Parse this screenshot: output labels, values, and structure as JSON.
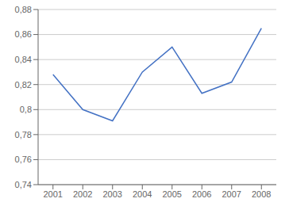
{
  "chart_data": {
    "type": "line",
    "x": [
      2001,
      2002,
      2003,
      2004,
      2005,
      2006,
      2007,
      2008
    ],
    "values": [
      0.828,
      0.8,
      0.791,
      0.83,
      0.85,
      0.813,
      0.822,
      0.865
    ],
    "color": "#4472c4",
    "xlim": [
      2000.5,
      2008.5
    ],
    "xticks": [
      2001,
      2002,
      2003,
      2004,
      2005,
      2006,
      2007,
      2008
    ],
    "ylim": [
      0.74,
      0.88
    ],
    "yticks": [
      {
        "value": 0.74,
        "label": "0,74"
      },
      {
        "value": 0.76,
        "label": "0,76"
      },
      {
        "value": 0.78,
        "label": "0,78"
      },
      {
        "value": 0.8,
        "label": "0,8"
      },
      {
        "value": 0.82,
        "label": "0,82"
      },
      {
        "value": 0.84,
        "label": "0,84"
      },
      {
        "value": 0.86,
        "label": "0,86"
      },
      {
        "value": 0.88,
        "label": "0,88"
      }
    ],
    "grid": true
  }
}
